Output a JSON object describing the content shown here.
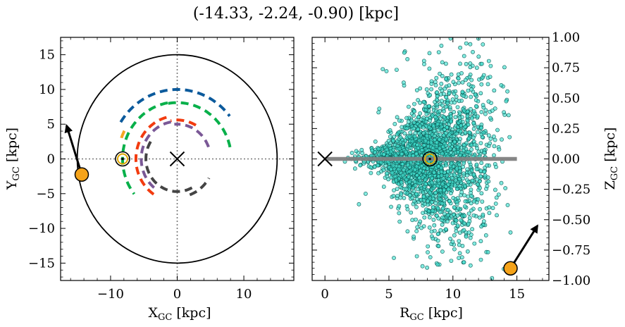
{
  "figure": {
    "title": "(-14.33, -2.24, -0.90) [kpc]"
  },
  "chart_data": [
    {
      "type": "scatter",
      "panel": "left",
      "xlabel": "X_GC [kpc]",
      "ylabel": "Y_GC [kpc]",
      "xlim": [
        -17.5,
        17.5
      ],
      "ylim": [
        -17.5,
        17.5
      ],
      "xticks": [
        -10,
        0,
        10
      ],
      "yticks": [
        -15,
        -10,
        -5,
        0,
        5,
        10,
        15
      ],
      "grid": false,
      "circle_radius": 15,
      "galactic_center": [
        0,
        0
      ],
      "sun_position": [
        -8.2,
        0
      ],
      "object_position": [
        -14.33,
        -2.24
      ],
      "velocity_arrow_tip": [
        -16.6,
        4.8
      ],
      "spiral_arms": [
        {
          "color": "#0b5a9c",
          "radius": 10.0,
          "start_deg": 148,
          "end_deg": 38
        },
        {
          "color": "#08b04a",
          "radius": 8.2,
          "start_deg": 100,
          "end_deg": 218
        },
        {
          "color": "#f5a623",
          "radius": 8.9,
          "start_deg": 153,
          "end_deg": 163
        },
        {
          "color": "#f23b0f",
          "radius": 6.2,
          "start_deg": 105,
          "end_deg": 242
        },
        {
          "color": "#7a5896",
          "radius": 5.4,
          "start_deg": 100,
          "end_deg": 232
        },
        {
          "color": "#444444",
          "radius": 4.7,
          "start_deg": 148,
          "end_deg": 303
        },
        {
          "color": "#7a5896",
          "radius": 5.0,
          "start_deg": 20,
          "end_deg": 95
        },
        {
          "color": "#444444",
          "radius": 5.5,
          "start_deg": 290,
          "end_deg": 330
        },
        {
          "color": "#f23b0f",
          "radius": 5.6,
          "start_deg": 60,
          "end_deg": 100
        },
        {
          "color": "#08b04a",
          "radius": 8.1,
          "start_deg": 12,
          "end_deg": 100
        }
      ]
    },
    {
      "type": "scatter",
      "panel": "right",
      "xlabel": "R_GC [kpc]",
      "ylabel": "Z_GC [kpc]",
      "xlim": [
        -1.0,
        17.5
      ],
      "ylim": [
        -1.0,
        1.0
      ],
      "xticks": [
        0,
        5,
        10,
        15
      ],
      "yticks": [
        -1.0,
        -0.75,
        -0.5,
        -0.25,
        0.0,
        0.25,
        0.5,
        0.75,
        1.0
      ],
      "grid": false,
      "point_color": "#40e0d0",
      "point_count": 2200,
      "point_distribution": {
        "r_center": 8.5,
        "r_spread": 2.3,
        "r_min": 1.5,
        "r_max": 14.5,
        "z_spread_min": 0.04,
        "z_spread_growth": 0.05
      },
      "disk_line": {
        "x": [
          0,
          15
        ],
        "y": [
          0,
          0
        ],
        "color": "#808080"
      },
      "galactic_center": [
        0,
        0
      ],
      "sun_position": [
        8.2,
        0.0
      ],
      "object_position": [
        14.5,
        -0.9
      ],
      "velocity_arrow_tip": [
        16.6,
        -0.55
      ]
    }
  ]
}
